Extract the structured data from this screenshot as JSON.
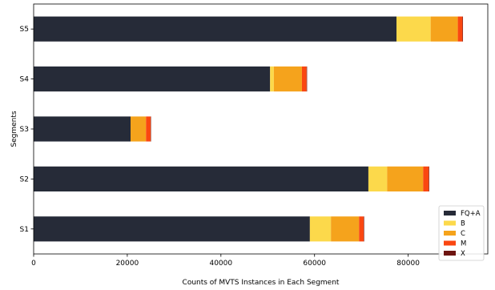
{
  "chart_data": {
    "type": "bar",
    "orientation": "horizontal",
    "stacked": true,
    "categories": [
      "S1",
      "S2",
      "S3",
      "S4",
      "S5"
    ],
    "series": [
      {
        "name": "FQ+A",
        "color": "#262b38",
        "values": [
          59000,
          71500,
          20700,
          50500,
          77500
        ]
      },
      {
        "name": "B",
        "color": "#fcd94b",
        "values": [
          4500,
          4000,
          0,
          800,
          7300
        ]
      },
      {
        "name": "C",
        "color": "#f5a31c",
        "values": [
          6000,
          7700,
          3300,
          6000,
          5800
        ]
      },
      {
        "name": "M",
        "color": "#fa4711",
        "values": [
          1000,
          1200,
          1000,
          1000,
          1000
        ]
      },
      {
        "name": "X",
        "color": "#6d1410",
        "values": [
          100,
          100,
          80,
          100,
          100
        ]
      }
    ],
    "xlabel": "Counts of MVTS Instances in Each Segment",
    "ylabel": "Segments",
    "xlim": [
      0,
      97000
    ],
    "xticks": [
      0,
      20000,
      40000,
      60000,
      80000
    ],
    "xtick_labels": [
      "0",
      "20000",
      "40000",
      "60000",
      "80000"
    ],
    "grid": false,
    "legend_position": "lower-right"
  }
}
